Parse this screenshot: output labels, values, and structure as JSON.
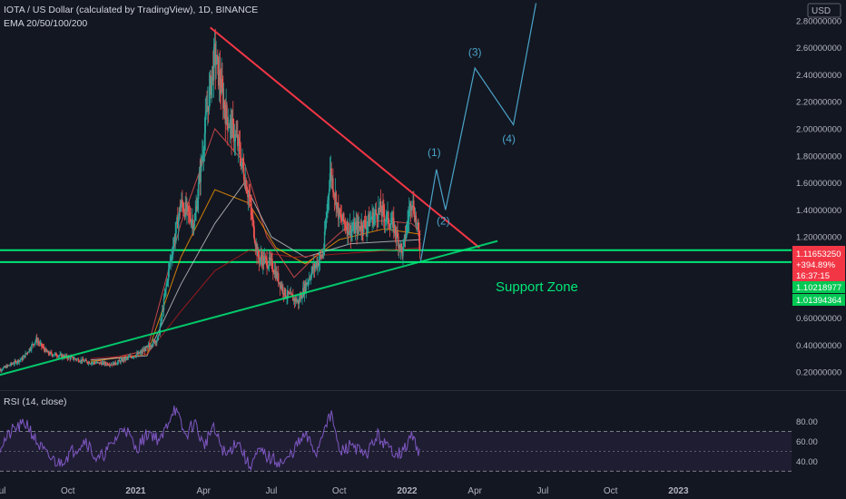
{
  "header": {
    "title": "IOTA / US Dollar (calculated by TradingView), 1D, BINANCE",
    "indicator": "EMA 20/50/100/200",
    "currency": "USD"
  },
  "rsi": {
    "label": "RSI (14, close)",
    "ticks": [
      "80.00",
      "60.00",
      "40.00"
    ],
    "tick_values": [
      80,
      60,
      40
    ],
    "upper_band": 70,
    "middle_band": 50,
    "lower_band": 30,
    "ylim": [
      24,
      106
    ]
  },
  "price_badges": {
    "last_price": "1.11653250",
    "change": "+394.89%",
    "countdown": "16:37:15",
    "level_1": "1.10218977",
    "level_2": "1.01394364"
  },
  "annotations": {
    "support_zone": "Support Zone",
    "waves": [
      "(1)",
      "(2)",
      "(3)",
      "(4)"
    ]
  },
  "colors": {
    "background": "#131722",
    "bull": "#26a69a",
    "bear": "#ef5350",
    "resistance": "#f23645",
    "support": "#00e676",
    "support_zone_text": "#00e676",
    "wave": "#4aa3c8",
    "rsi_line": "#7e57c2",
    "rsi_fill": "#2a2340",
    "badge_price": "#f23645",
    "badge_support": "#00c853"
  },
  "chart_data": {
    "type": "candlestick",
    "symbol": "IOTA/USD",
    "timeframe": "1D",
    "x_ticks": [
      "Jul",
      "Oct",
      "2021",
      "Apr",
      "Jul",
      "Oct",
      "2022",
      "Apr",
      "Jul",
      "Oct",
      "2023"
    ],
    "x_tick_months": [
      0,
      3,
      6,
      9,
      12,
      15,
      18,
      21,
      24,
      27,
      30
    ],
    "y_ticks": [
      "2.80000000",
      "2.60000000",
      "2.40000000",
      "2.20000000",
      "2.00000000",
      "1.80000000",
      "1.60000000",
      "1.40000000",
      "1.20000000",
      "0.60000000",
      "0.40000000",
      "0.20000000"
    ],
    "y_tick_values": [
      2.8,
      2.6,
      2.4,
      2.2,
      2.0,
      1.8,
      1.6,
      1.4,
      1.2,
      0.6,
      0.4,
      0.2
    ],
    "ylim": [
      0.12,
      2.94
    ],
    "xlim_months": [
      0,
      35
    ],
    "price_path": [
      [
        -0.2,
        0.2
      ],
      [
        1.0,
        0.3
      ],
      [
        1.6,
        0.44
      ],
      [
        2.1,
        0.34
      ],
      [
        3.0,
        0.31
      ],
      [
        4.0,
        0.27
      ],
      [
        5.0,
        0.26
      ],
      [
        6.2,
        0.34
      ],
      [
        7.0,
        0.45
      ],
      [
        7.5,
        1.0
      ],
      [
        8.0,
        1.45
      ],
      [
        8.6,
        1.3
      ],
      [
        9.2,
        2.2
      ],
      [
        9.5,
        2.55
      ],
      [
        10.0,
        2.1
      ],
      [
        10.5,
        1.9
      ],
      [
        11.0,
        1.5
      ],
      [
        11.4,
        1.05
      ],
      [
        12.0,
        1.0
      ],
      [
        12.6,
        0.78
      ],
      [
        13.2,
        0.72
      ],
      [
        13.8,
        0.95
      ],
      [
        14.3,
        1.08
      ],
      [
        14.6,
        1.7
      ],
      [
        15.0,
        1.35
      ],
      [
        15.5,
        1.25
      ],
      [
        16.2,
        1.3
      ],
      [
        16.8,
        1.4
      ],
      [
        17.4,
        1.28
      ],
      [
        17.8,
        1.08
      ],
      [
        18.2,
        1.5
      ],
      [
        18.6,
        1.12
      ]
    ],
    "ema_paths": [
      {
        "name": "EMA 20",
        "color": "#ef5350",
        "points": [
          [
            4.0,
            0.27
          ],
          [
            6.5,
            0.36
          ],
          [
            8.0,
            1.3
          ],
          [
            9.5,
            2.0
          ],
          [
            10.8,
            1.75
          ],
          [
            11.8,
            1.2
          ],
          [
            13.0,
            0.9
          ],
          [
            14.5,
            1.15
          ],
          [
            15.5,
            1.3
          ],
          [
            17.0,
            1.32
          ],
          [
            18.2,
            1.3
          ],
          [
            18.6,
            1.24
          ]
        ]
      },
      {
        "name": "EMA 50",
        "color": "#ff9800",
        "points": [
          [
            4.0,
            0.28
          ],
          [
            6.5,
            0.33
          ],
          [
            8.0,
            1.05
          ],
          [
            9.5,
            1.55
          ],
          [
            11.0,
            1.45
          ],
          [
            12.2,
            1.12
          ],
          [
            13.5,
            1.0
          ],
          [
            15.0,
            1.18
          ],
          [
            17.0,
            1.26
          ],
          [
            18.6,
            1.22
          ]
        ]
      },
      {
        "name": "EMA 100",
        "color": "#c8c8c8",
        "points": [
          [
            4.0,
            0.29
          ],
          [
            6.5,
            0.32
          ],
          [
            8.0,
            0.85
          ],
          [
            9.5,
            1.3
          ],
          [
            10.8,
            1.6
          ],
          [
            12.0,
            1.2
          ],
          [
            13.5,
            1.05
          ],
          [
            15.5,
            1.15
          ],
          [
            18.6,
            1.18
          ]
        ]
      },
      {
        "name": "EMA 200",
        "color": "#b71c1c",
        "points": [
          [
            4.0,
            0.3
          ],
          [
            6.5,
            0.33
          ],
          [
            8.0,
            0.65
          ],
          [
            9.5,
            0.95
          ],
          [
            11.0,
            1.1
          ],
          [
            13.0,
            1.05
          ],
          [
            15.5,
            1.08
          ],
          [
            18.6,
            1.12
          ]
        ]
      }
    ],
    "trendlines": [
      {
        "name": "resistance",
        "points": [
          [
            9.3,
            2.75
          ],
          [
            21.2,
            1.12
          ]
        ]
      },
      {
        "name": "support",
        "points": [
          [
            -0.2,
            0.17
          ],
          [
            22.0,
            1.17
          ]
        ]
      }
    ],
    "horizontal_levels": [
      1.10218977,
      1.01394364
    ],
    "projection": [
      [
        18.6,
        1.02
      ],
      [
        19.3,
        1.7
      ],
      [
        19.7,
        1.4
      ],
      [
        21.0,
        2.45
      ],
      [
        22.7,
        2.03
      ],
      [
        23.7,
        2.93
      ]
    ],
    "wave_label_points": [
      [
        19.2,
        1.8
      ],
      [
        19.6,
        1.29
      ],
      [
        21.0,
        2.54
      ],
      [
        22.5,
        1.9
      ]
    ],
    "rsi_path": [
      [
        0,
        55
      ],
      [
        0.6,
        72
      ],
      [
        1.2,
        78
      ],
      [
        1.6,
        60
      ],
      [
        2.1,
        45
      ],
      [
        2.6,
        38
      ],
      [
        3.2,
        50
      ],
      [
        3.8,
        62
      ],
      [
        4.3,
        40
      ],
      [
        4.9,
        55
      ],
      [
        5.5,
        76
      ],
      [
        6.0,
        52
      ],
      [
        6.6,
        70
      ],
      [
        7.1,
        60
      ],
      [
        7.7,
        95
      ],
      [
        8.2,
        65
      ],
      [
        8.6,
        80
      ],
      [
        9.0,
        55
      ],
      [
        9.4,
        74
      ],
      [
        10.0,
        45
      ],
      [
        10.5,
        62
      ],
      [
        11.0,
        35
      ],
      [
        11.5,
        50
      ],
      [
        12.0,
        42
      ],
      [
        12.6,
        38
      ],
      [
        13.1,
        55
      ],
      [
        13.5,
        66
      ],
      [
        14.0,
        48
      ],
      [
        14.4,
        80
      ],
      [
        14.7,
        85
      ],
      [
        15.0,
        48
      ],
      [
        15.6,
        58
      ],
      [
        16.1,
        44
      ],
      [
        16.7,
        66
      ],
      [
        17.2,
        52
      ],
      [
        17.8,
        48
      ],
      [
        18.2,
        66
      ],
      [
        18.5,
        52
      ],
      [
        18.6,
        48
      ]
    ]
  }
}
